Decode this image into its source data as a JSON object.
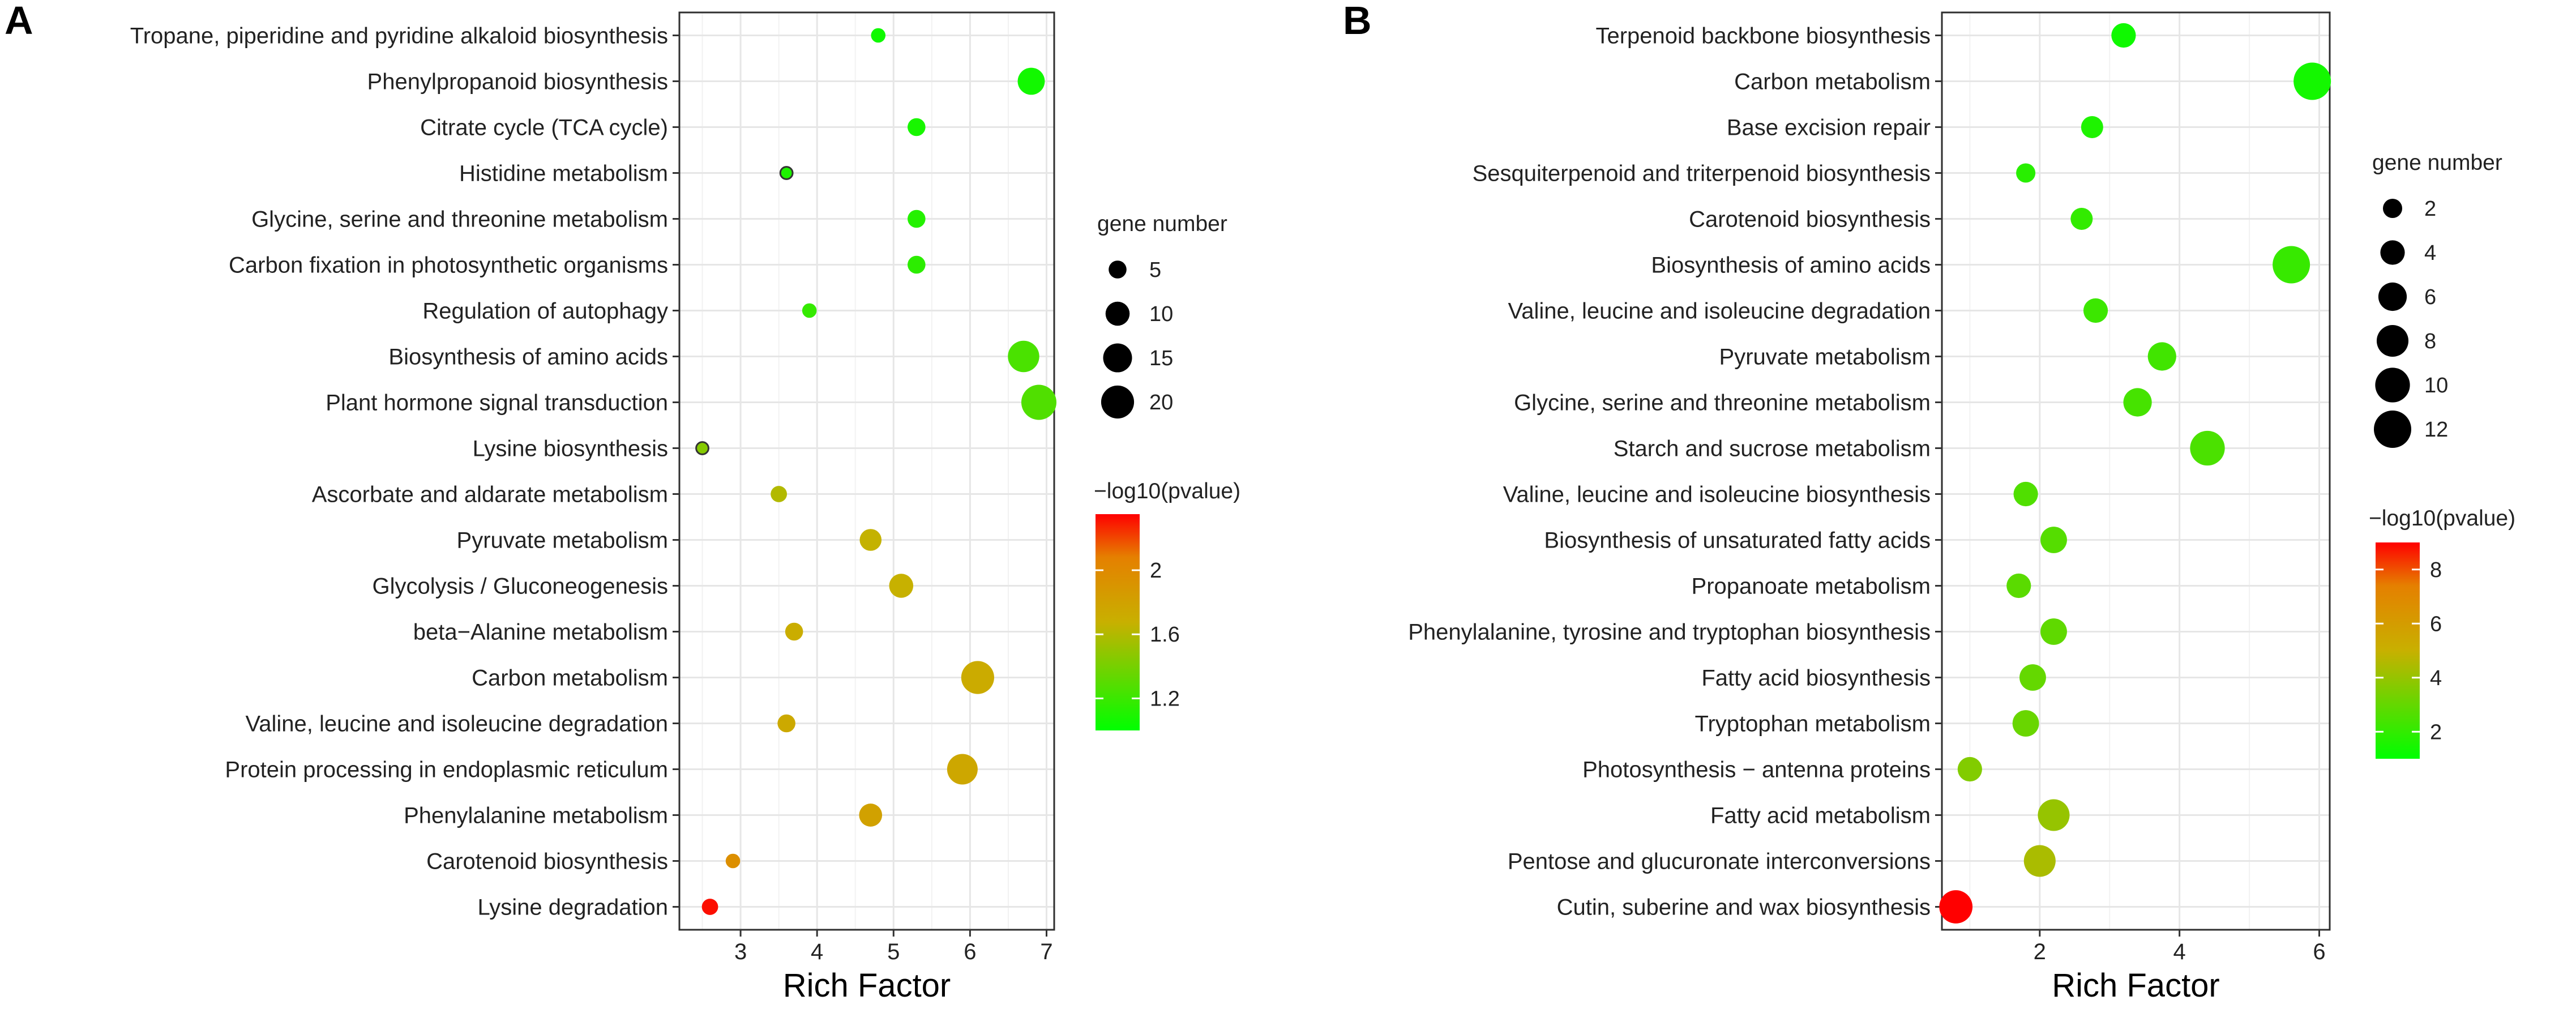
{
  "chart_data": [
    {
      "type": "scatter",
      "panel": "A",
      "xlabel": "Rich Factor",
      "ylabel": "",
      "xlim": [
        2.2,
        7.1
      ],
      "xticks": [
        3,
        4,
        5,
        6,
        7
      ],
      "size_legend": {
        "title": "gene number",
        "values": [
          5,
          10,
          15,
          20
        ]
      },
      "color_legend": {
        "title": "−log10(pvalue)",
        "ticks": [
          1.2,
          1.6,
          2.0
        ],
        "range": [
          1.0,
          2.35
        ],
        "low_color": "#00ff00",
        "high_color": "#ff0000"
      },
      "points": [
        {
          "term": "Tropane, piperidine and pyridine alkaloid biosynthesis",
          "rich_factor": 4.8,
          "gene_number": 3,
          "neg_log10_p": 1.05
        },
        {
          "term": "Phenylpropanoid biosynthesis",
          "rich_factor": 6.8,
          "gene_number": 13,
          "neg_log10_p": 1.06
        },
        {
          "term": "Citrate cycle (TCA cycle)",
          "rich_factor": 5.3,
          "gene_number": 5,
          "neg_log10_p": 1.08
        },
        {
          "term": "Histidine metabolism",
          "rich_factor": 3.6,
          "gene_number": 2,
          "neg_log10_p": 1.1
        },
        {
          "term": "Glycine, serine and threonine metabolism",
          "rich_factor": 5.3,
          "gene_number": 5,
          "neg_log10_p": 1.12
        },
        {
          "term": "Carbon fixation in photosynthetic organisms",
          "rich_factor": 5.3,
          "gene_number": 5,
          "neg_log10_p": 1.15
        },
        {
          "term": "Regulation of autophagy",
          "rich_factor": 3.9,
          "gene_number": 3,
          "neg_log10_p": 1.18
        },
        {
          "term": "Biosynthesis of amino acids",
          "rich_factor": 6.7,
          "gene_number": 18,
          "neg_log10_p": 1.25
        },
        {
          "term": "Plant hormone signal transduction",
          "rich_factor": 6.9,
          "gene_number": 23,
          "neg_log10_p": 1.27
        },
        {
          "term": "Lysine biosynthesis",
          "rich_factor": 2.5,
          "gene_number": 2,
          "neg_log10_p": 1.45
        },
        {
          "term": "Ascorbate and aldarate metabolism",
          "rich_factor": 3.5,
          "gene_number": 4,
          "neg_log10_p": 1.6
        },
        {
          "term": "Pyruvate metabolism",
          "rich_factor": 4.7,
          "gene_number": 8,
          "neg_log10_p": 1.66
        },
        {
          "term": "Glycolysis / Gluconeogenesis",
          "rich_factor": 5.1,
          "gene_number": 10,
          "neg_log10_p": 1.67
        },
        {
          "term": "beta−Alanine metabolism",
          "rich_factor": 3.7,
          "gene_number": 5,
          "neg_log10_p": 1.7
        },
        {
          "term": "Carbon metabolism",
          "rich_factor": 6.1,
          "gene_number": 20,
          "neg_log10_p": 1.72
        },
        {
          "term": "Valine, leucine and isoleucine degradation",
          "rich_factor": 3.6,
          "gene_number": 5,
          "neg_log10_p": 1.73
        },
        {
          "term": "Protein processing in endoplasmic reticulum",
          "rich_factor": 5.9,
          "gene_number": 17,
          "neg_log10_p": 1.75
        },
        {
          "term": "Phenylalanine metabolism",
          "rich_factor": 4.7,
          "gene_number": 9,
          "neg_log10_p": 1.8
        },
        {
          "term": "Carotenoid biosynthesis",
          "rich_factor": 2.9,
          "gene_number": 3,
          "neg_log10_p": 1.95
        },
        {
          "term": "Lysine degradation",
          "rich_factor": 2.6,
          "gene_number": 4,
          "neg_log10_p": 2.32
        }
      ]
    },
    {
      "type": "scatter",
      "panel": "B",
      "xlabel": "Rich Factor",
      "ylabel": "",
      "xlim": [
        0.6,
        6.15
      ],
      "xticks": [
        2,
        4,
        6
      ],
      "size_legend": {
        "title": "gene number",
        "values": [
          2,
          4,
          6,
          8,
          10,
          12
        ]
      },
      "color_legend": {
        "title": "−log10(pvalue)",
        "ticks": [
          2,
          4,
          6,
          8
        ],
        "range": [
          1.0,
          9.0
        ],
        "low_color": "#00ff00",
        "high_color": "#ff0000"
      },
      "points": [
        {
          "term": "Terpenoid backbone biosynthesis",
          "rich_factor": 3.2,
          "gene_number": 4,
          "neg_log10_p": 1.3
        },
        {
          "term": "Carbon metabolism",
          "rich_factor": 5.9,
          "gene_number": 12,
          "neg_log10_p": 1.4
        },
        {
          "term": "Base excision repair",
          "rich_factor": 2.75,
          "gene_number": 3,
          "neg_log10_p": 1.6
        },
        {
          "term": "Sesquiterpenoid and triterpenoid biosynthesis",
          "rich_factor": 1.8,
          "gene_number": 2,
          "neg_log10_p": 1.8
        },
        {
          "term": "Carotenoid biosynthesis",
          "rich_factor": 2.6,
          "gene_number": 3,
          "neg_log10_p": 2.0
        },
        {
          "term": "Biosynthesis of amino acids",
          "rich_factor": 5.6,
          "gene_number": 12,
          "neg_log10_p": 2.1
        },
        {
          "term": "Valine, leucine and isoleucine degradation",
          "rich_factor": 2.8,
          "gene_number": 4,
          "neg_log10_p": 2.2
        },
        {
          "term": "Pyruvate metabolism",
          "rich_factor": 3.75,
          "gene_number": 6,
          "neg_log10_p": 2.3
        },
        {
          "term": "Glycine, serine and threonine metabolism",
          "rich_factor": 3.4,
          "gene_number": 6,
          "neg_log10_p": 2.4
        },
        {
          "term": "Starch and sucrose metabolism",
          "rich_factor": 4.4,
          "gene_number": 10,
          "neg_log10_p": 2.5
        },
        {
          "term": "Valine, leucine and isoleucine biosynthesis",
          "rich_factor": 1.8,
          "gene_number": 4,
          "neg_log10_p": 2.6
        },
        {
          "term": "Biosynthesis of unsaturated fatty acids",
          "rich_factor": 2.2,
          "gene_number": 5,
          "neg_log10_p": 2.7
        },
        {
          "term": "Propanoate metabolism",
          "rich_factor": 1.7,
          "gene_number": 4,
          "neg_log10_p": 2.8
        },
        {
          "term": "Phenylalanine, tyrosine and tryptophan biosynthesis",
          "rich_factor": 2.2,
          "gene_number": 5,
          "neg_log10_p": 2.9
        },
        {
          "term": "Fatty acid biosynthesis",
          "rich_factor": 1.9,
          "gene_number": 5,
          "neg_log10_p": 3.0
        },
        {
          "term": "Tryptophan metabolism",
          "rich_factor": 1.8,
          "gene_number": 5,
          "neg_log10_p": 3.1
        },
        {
          "term": "Photosynthesis − antenna proteins",
          "rich_factor": 1.0,
          "gene_number": 4,
          "neg_log10_p": 3.6
        },
        {
          "term": "Fatty acid metabolism",
          "rich_factor": 2.2,
          "gene_number": 8,
          "neg_log10_p": 4.0
        },
        {
          "term": "Pentose and glucuronate interconversions",
          "rich_factor": 2.0,
          "gene_number": 8,
          "neg_log10_p": 4.4
        },
        {
          "term": "Cutin, suberine and wax biosynthesis",
          "rich_factor": 0.8,
          "gene_number": 9,
          "neg_log10_p": 9.0
        }
      ]
    }
  ]
}
